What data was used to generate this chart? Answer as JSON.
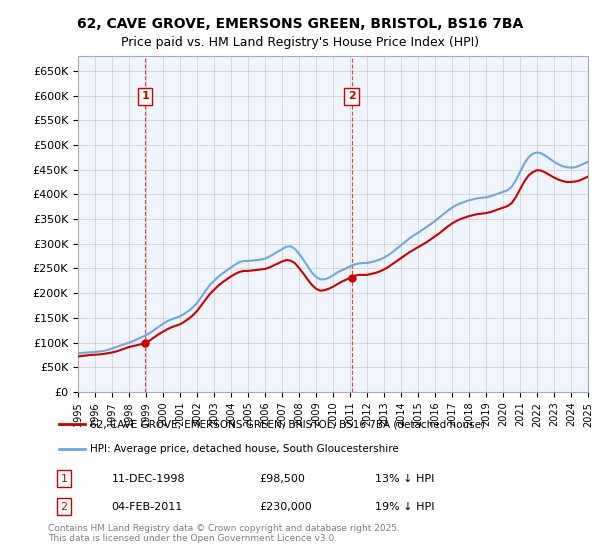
{
  "title": "62, CAVE GROVE, EMERSONS GREEN, BRISTOL, BS16 7BA",
  "subtitle": "Price paid vs. HM Land Registry's House Price Index (HPI)",
  "legend_line1": "62, CAVE GROVE, EMERSONS GREEN, BRISTOL, BS16 7BA (detached house)",
  "legend_line2": "HPI: Average price, detached house, South Gloucestershire",
  "footnote": "Contains HM Land Registry data © Crown copyright and database right 2025.\nThis data is licensed under the Open Government Licence v3.0.",
  "marker1_label": "1",
  "marker1_date": "11-DEC-1998",
  "marker1_price": "£98,500",
  "marker1_note": "13% ↓ HPI",
  "marker1_year": 1998.95,
  "marker1_value": 98500,
  "marker2_label": "2",
  "marker2_date": "04-FEB-2011",
  "marker2_price": "£230,000",
  "marker2_note": "19% ↓ HPI",
  "marker2_year": 2011.1,
  "marker2_value": 230000,
  "ylim": [
    0,
    680000
  ],
  "yticks": [
    0,
    50000,
    100000,
    150000,
    200000,
    250000,
    300000,
    350000,
    400000,
    450000,
    500000,
    550000,
    600000,
    650000
  ],
  "hpi_color": "#6fa8dc",
  "price_color": "#cc0000",
  "grid_color": "#cccccc",
  "bg_color": "#eaf0fb",
  "plot_bg": "#f0f4fc",
  "hpi_data_x": [
    1995,
    1995.25,
    1995.5,
    1995.75,
    1996,
    1996.25,
    1996.5,
    1996.75,
    1997,
    1997.25,
    1997.5,
    1997.75,
    1998,
    1998.25,
    1998.5,
    1998.75,
    1999,
    1999.25,
    1999.5,
    1999.75,
    2000,
    2000.25,
    2000.5,
    2000.75,
    2001,
    2001.25,
    2001.5,
    2001.75,
    2002,
    2002.25,
    2002.5,
    2002.75,
    2003,
    2003.25,
    2003.5,
    2003.75,
    2004,
    2004.25,
    2004.5,
    2004.75,
    2005,
    2005.25,
    2005.5,
    2005.75,
    2006,
    2006.25,
    2006.5,
    2006.75,
    2007,
    2007.25,
    2007.5,
    2007.75,
    2008,
    2008.25,
    2008.5,
    2008.75,
    2009,
    2009.25,
    2009.5,
    2009.75,
    2010,
    2010.25,
    2010.5,
    2010.75,
    2011,
    2011.25,
    2011.5,
    2011.75,
    2012,
    2012.25,
    2012.5,
    2012.75,
    2013,
    2013.25,
    2013.5,
    2013.75,
    2014,
    2014.25,
    2014.5,
    2014.75,
    2015,
    2015.25,
    2015.5,
    2015.75,
    2016,
    2016.25,
    2016.5,
    2016.75,
    2017,
    2017.25,
    2017.5,
    2017.75,
    2018,
    2018.25,
    2018.5,
    2018.75,
    2019,
    2019.25,
    2019.5,
    2019.75,
    2020,
    2020.25,
    2020.5,
    2020.75,
    2021,
    2021.25,
    2021.5,
    2021.75,
    2022,
    2022.25,
    2022.5,
    2022.75,
    2023,
    2023.25,
    2023.5,
    2023.75,
    2024,
    2024.25,
    2024.5,
    2024.75,
    2025
  ],
  "hpi_data_y": [
    78000,
    79000,
    80000,
    80500,
    81000,
    82000,
    83000,
    85000,
    88000,
    91000,
    94000,
    97000,
    100000,
    103000,
    107000,
    111000,
    115000,
    120000,
    126000,
    132000,
    138000,
    143000,
    147000,
    150000,
    153000,
    158000,
    164000,
    171000,
    180000,
    192000,
    205000,
    216000,
    225000,
    233000,
    240000,
    246000,
    252000,
    258000,
    263000,
    265000,
    265000,
    266000,
    267000,
    268000,
    270000,
    274000,
    279000,
    284000,
    289000,
    294000,
    295000,
    290000,
    280000,
    268000,
    255000,
    242000,
    233000,
    228000,
    228000,
    231000,
    236000,
    242000,
    246000,
    250000,
    254000,
    258000,
    260000,
    261000,
    261000,
    263000,
    265000,
    268000,
    272000,
    277000,
    283000,
    290000,
    297000,
    304000,
    311000,
    317000,
    322000,
    328000,
    334000,
    340000,
    346000,
    353000,
    360000,
    367000,
    373000,
    378000,
    382000,
    385000,
    388000,
    390000,
    392000,
    393000,
    394000,
    396000,
    399000,
    402000,
    405000,
    408000,
    415000,
    428000,
    445000,
    462000,
    475000,
    482000,
    485000,
    483000,
    478000,
    472000,
    466000,
    461000,
    457000,
    455000,
    454000,
    455000,
    458000,
    462000,
    466000
  ],
  "price_data_x": [
    1995,
    1995.25,
    1995.5,
    1995.75,
    1996,
    1996.25,
    1996.5,
    1996.75,
    1997,
    1997.25,
    1997.5,
    1997.75,
    1998,
    1998.25,
    1998.5,
    1998.75,
    1999,
    1999.25,
    1999.5,
    1999.75,
    2000,
    2000.25,
    2000.5,
    2000.75,
    2001,
    2001.25,
    2001.5,
    2001.75,
    2002,
    2002.25,
    2002.5,
    2002.75,
    2003,
    2003.25,
    2003.5,
    2003.75,
    2004,
    2004.25,
    2004.5,
    2004.75,
    2005,
    2005.25,
    2005.5,
    2005.75,
    2006,
    2006.25,
    2006.5,
    2006.75,
    2007,
    2007.25,
    2007.5,
    2007.75,
    2008,
    2008.25,
    2008.5,
    2008.75,
    2009,
    2009.25,
    2009.5,
    2009.75,
    2010,
    2010.25,
    2010.5,
    2010.75,
    2011,
    2011.25,
    2011.5,
    2011.75,
    2012,
    2012.25,
    2012.5,
    2012.75,
    2013,
    2013.25,
    2013.5,
    2013.75,
    2014,
    2014.25,
    2014.5,
    2014.75,
    2015,
    2015.25,
    2015.5,
    2015.75,
    2016,
    2016.25,
    2016.5,
    2016.75,
    2017,
    2017.25,
    2017.5,
    2017.75,
    2018,
    2018.25,
    2018.5,
    2018.75,
    2019,
    2019.25,
    2019.5,
    2019.75,
    2020,
    2020.25,
    2020.5,
    2020.75,
    2021,
    2021.25,
    2021.5,
    2021.75,
    2022,
    2022.25,
    2022.5,
    2022.75,
    2023,
    2023.25,
    2023.5,
    2023.75,
    2024,
    2024.25,
    2024.5,
    2024.75,
    2025
  ],
  "price_data_y": [
    72000,
    73000,
    74000,
    75000,
    75500,
    76000,
    77000,
    78500,
    80000,
    82000,
    85000,
    88000,
    91000,
    93000,
    95000,
    97000,
    100000,
    105000,
    111000,
    117000,
    122000,
    127000,
    131000,
    134000,
    137000,
    142000,
    148000,
    155000,
    164000,
    175000,
    187000,
    198000,
    207000,
    215000,
    222000,
    228000,
    234000,
    239000,
    243000,
    245000,
    245000,
    246000,
    247000,
    248000,
    249000,
    252000,
    256000,
    260000,
    264000,
    267000,
    266000,
    261000,
    251000,
    240000,
    228000,
    217000,
    209000,
    205000,
    206000,
    209000,
    213000,
    218000,
    223000,
    227000,
    231000,
    235000,
    237000,
    237000,
    237000,
    239000,
    241000,
    244000,
    248000,
    253000,
    259000,
    265000,
    271000,
    277000,
    283000,
    288000,
    293000,
    298000,
    303000,
    309000,
    315000,
    321000,
    328000,
    335000,
    341000,
    346000,
    350000,
    353000,
    356000,
    358000,
    360000,
    361000,
    362000,
    364000,
    367000,
    370000,
    373000,
    376000,
    382000,
    394000,
    410000,
    426000,
    438000,
    445000,
    449000,
    448000,
    444000,
    439000,
    434000,
    430000,
    427000,
    425000,
    425000,
    426000,
    428000,
    432000,
    436000
  ]
}
